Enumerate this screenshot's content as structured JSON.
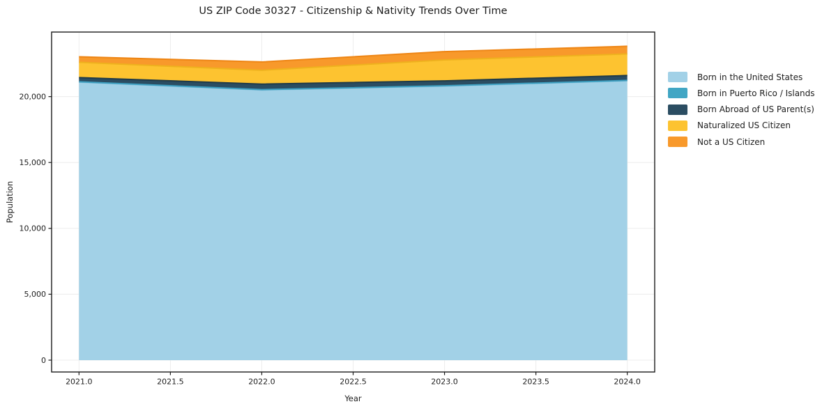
{
  "chart_data": {
    "type": "area",
    "stacked": true,
    "title": "US ZIP Code 30327 - Citizenship & Nativity Trends Over Time",
    "xlabel": "Year",
    "ylabel": "Population",
    "x": [
      2021,
      2022,
      2023,
      2024
    ],
    "xlim": [
      2020.85,
      2024.15
    ],
    "ylim": [
      -900,
      24900
    ],
    "grid": true,
    "grid_color": "#ececec",
    "background": "#ffffff",
    "spine_color": "#1a1a1a",
    "text_color": "#1c1c1c",
    "legend_position": "right-outside",
    "x_axis": {
      "ticks": [
        2021.0,
        2021.5,
        2022.0,
        2022.5,
        2023.0,
        2023.5,
        2024.0
      ],
      "tick_labels": [
        "2021.0",
        "2021.5",
        "2022.0",
        "2022.5",
        "2023.0",
        "2023.5",
        "2024.0"
      ]
    },
    "y_axis": {
      "ticks": [
        0,
        5000,
        10000,
        15000,
        20000
      ],
      "tick_labels": [
        "0",
        "5,000",
        "10,000",
        "15,000",
        "20,000"
      ]
    },
    "series": [
      {
        "id": "born-us",
        "name": "Born in the United States",
        "color": "#a2d1e7",
        "edge": "#86c1dc",
        "values": [
          21100,
          20500,
          20800,
          21200
        ]
      },
      {
        "id": "born-pr-islands",
        "name": "Born in Puerto Rico / Islands",
        "color": "#41a6c4",
        "edge": "#3d9fc0",
        "values": [
          25,
          30,
          25,
          30
        ]
      },
      {
        "id": "born-abroad",
        "name": "Born Abroad of US Parent(s)",
        "color": "#2b4d62",
        "edge": "#1f3a49",
        "values": [
          320,
          420,
          370,
          370
        ]
      },
      {
        "id": "naturalized",
        "name": "Naturalized US Citizen",
        "color": "#fdc330",
        "edge": "#eeb11e",
        "values": [
          1160,
          1050,
          1590,
          1640
        ]
      },
      {
        "id": "not-citizen",
        "name": "Not a US Citizen",
        "color": "#f8992b",
        "edge": "#ee8514",
        "values": [
          420,
          630,
          630,
          580
        ]
      }
    ]
  }
}
